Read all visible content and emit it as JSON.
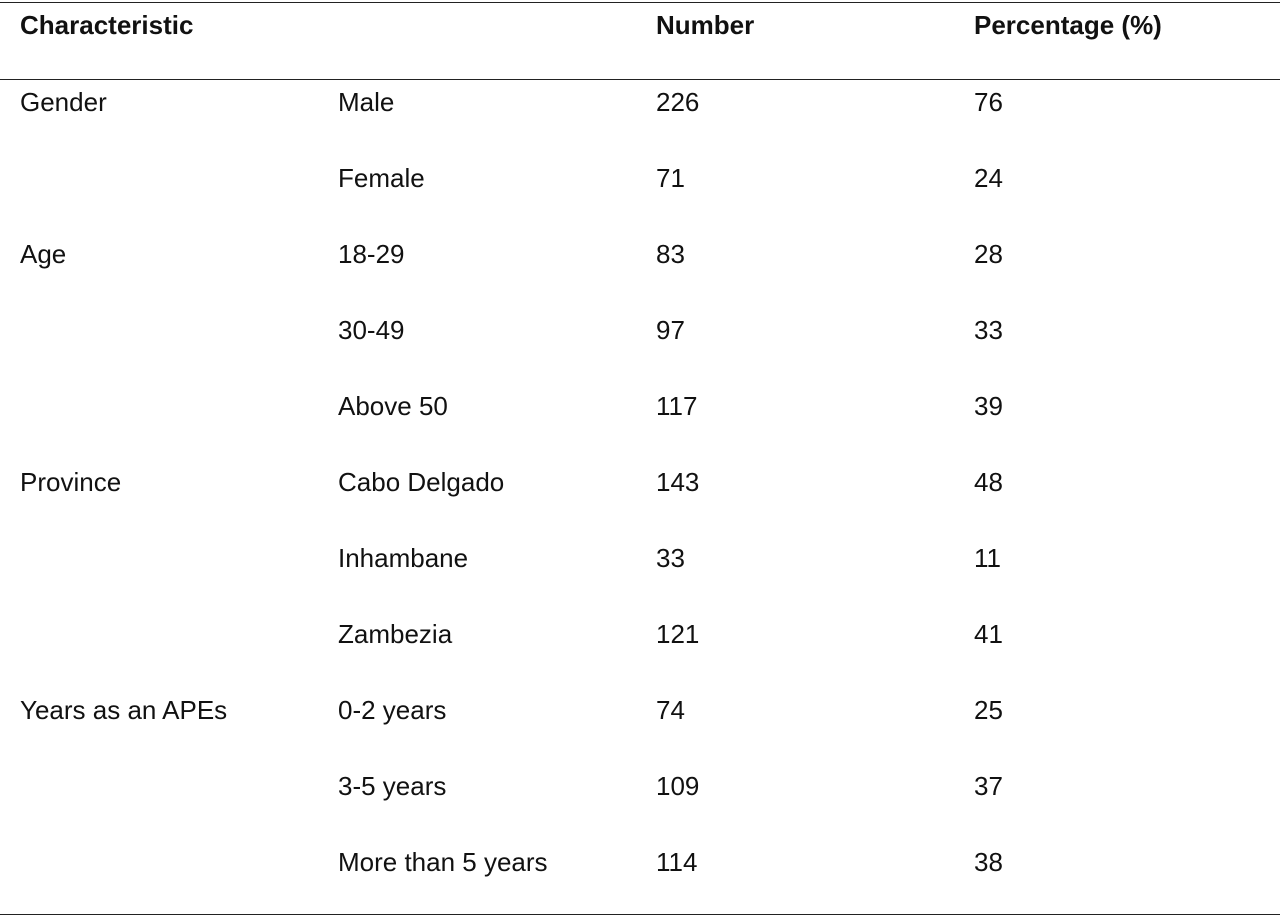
{
  "table": {
    "headers": [
      "Characteristic",
      "",
      "Number",
      "Percentage (%)"
    ],
    "rows": [
      [
        "Gender",
        "Male",
        "226",
        "76"
      ],
      [
        "",
        "Female",
        "71",
        "24"
      ],
      [
        "Age",
        "18-29",
        "83",
        "28"
      ],
      [
        "",
        "30-49",
        "97",
        "33"
      ],
      [
        "",
        "Above 50",
        "117",
        "39"
      ],
      [
        "Province",
        "Cabo Delgado",
        "143",
        "48"
      ],
      [
        "",
        "Inhambane",
        "33",
        "11"
      ],
      [
        "",
        "Zambezia",
        "121",
        "41"
      ],
      [
        "Years as an APEs",
        "0-2 years",
        "74",
        "25"
      ],
      [
        "",
        "3-5 years",
        "109",
        "37"
      ],
      [
        "",
        "More than 5 years",
        "114",
        "38"
      ]
    ]
  }
}
